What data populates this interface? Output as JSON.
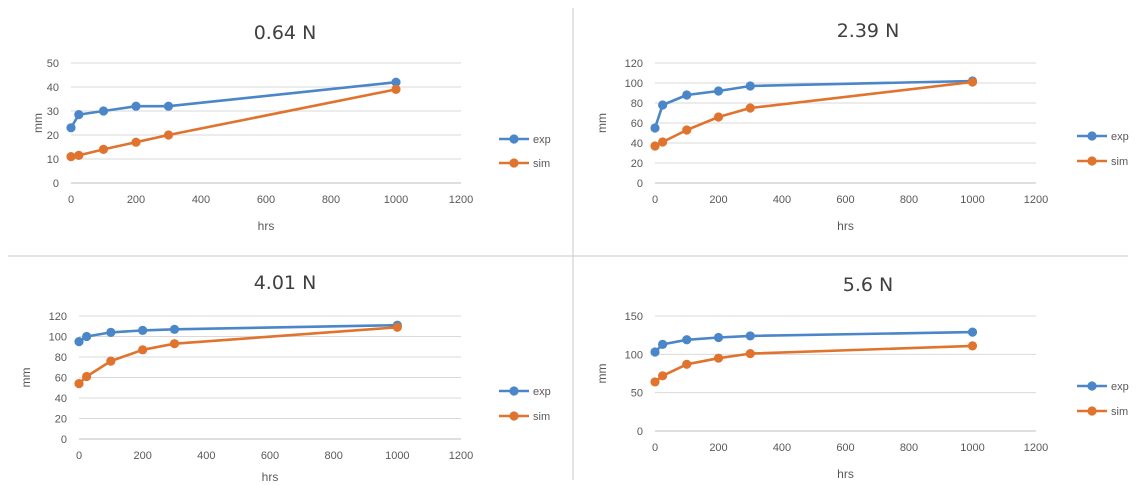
{
  "chart_data": [
    {
      "type": "line",
      "title": "0.64 N",
      "xlabel": "hrs",
      "ylabel": "mm",
      "xlim": [
        0,
        1200
      ],
      "xticks": [
        0,
        200,
        400,
        600,
        800,
        1000,
        1200
      ],
      "ylim": [
        0,
        50
      ],
      "yticks": [
        0,
        10,
        20,
        30,
        40,
        50
      ],
      "grid": true,
      "legend": "right",
      "series": [
        {
          "name": "exp",
          "color": "#4a86c8",
          "x": [
            0,
            24,
            100,
            200,
            300,
            1000
          ],
          "y": [
            23,
            28.5,
            30,
            32,
            32,
            42
          ]
        },
        {
          "name": "sim",
          "color": "#e0732e",
          "x": [
            0,
            24,
            100,
            200,
            300,
            1000
          ],
          "y": [
            11,
            11.5,
            14,
            17,
            20,
            39
          ]
        }
      ]
    },
    {
      "type": "line",
      "title": "2.39 N",
      "xlabel": "hrs",
      "ylabel": "mm",
      "xlim": [
        0,
        1200
      ],
      "xticks": [
        0,
        200,
        400,
        600,
        800,
        1000,
        1200
      ],
      "ylim": [
        0,
        120
      ],
      "yticks": [
        0,
        20,
        40,
        60,
        80,
        100,
        120
      ],
      "grid": true,
      "legend": "right",
      "series": [
        {
          "name": "exp",
          "color": "#4a86c8",
          "x": [
            0,
            24,
            100,
            200,
            300,
            1000
          ],
          "y": [
            55,
            78,
            88,
            92,
            97,
            102
          ]
        },
        {
          "name": "sim",
          "color": "#e0732e",
          "x": [
            0,
            24,
            100,
            200,
            300,
            1000
          ],
          "y": [
            37,
            41,
            53,
            66,
            75,
            101
          ]
        }
      ]
    },
    {
      "type": "line",
      "title": "4.01 N",
      "xlabel": "hrs",
      "ylabel": "mm",
      "xlim": [
        0,
        1200
      ],
      "xticks": [
        0,
        200,
        400,
        600,
        800,
        1000,
        1200
      ],
      "ylim": [
        0,
        120
      ],
      "yticks": [
        0,
        20,
        40,
        60,
        80,
        100,
        120
      ],
      "grid": true,
      "legend": "right",
      "series": [
        {
          "name": "exp",
          "color": "#4a86c8",
          "x": [
            0,
            24,
            100,
            200,
            300,
            1000
          ],
          "y": [
            95,
            100,
            104,
            106,
            107,
            111
          ]
        },
        {
          "name": "sim",
          "color": "#e0732e",
          "x": [
            0,
            24,
            100,
            200,
            300,
            1000
          ],
          "y": [
            54,
            61,
            76,
            87,
            93,
            109
          ]
        }
      ]
    },
    {
      "type": "line",
      "title": "5.6 N",
      "xlabel": "hrs",
      "ylabel": "mm",
      "xlim": [
        0,
        1200
      ],
      "xticks": [
        0,
        200,
        400,
        600,
        800,
        1000,
        1200
      ],
      "ylim": [
        0,
        150
      ],
      "yticks": [
        0,
        50,
        100,
        150
      ],
      "grid": true,
      "legend": "right",
      "series": [
        {
          "name": "exp",
          "color": "#4a86c8",
          "x": [
            0,
            24,
            100,
            200,
            300,
            1000
          ],
          "y": [
            103,
            113,
            119,
            122,
            124,
            129
          ]
        },
        {
          "name": "sim",
          "color": "#e0732e",
          "x": [
            0,
            24,
            100,
            200,
            300,
            1000
          ],
          "y": [
            64,
            72,
            87,
            95,
            101,
            111
          ]
        }
      ]
    }
  ]
}
